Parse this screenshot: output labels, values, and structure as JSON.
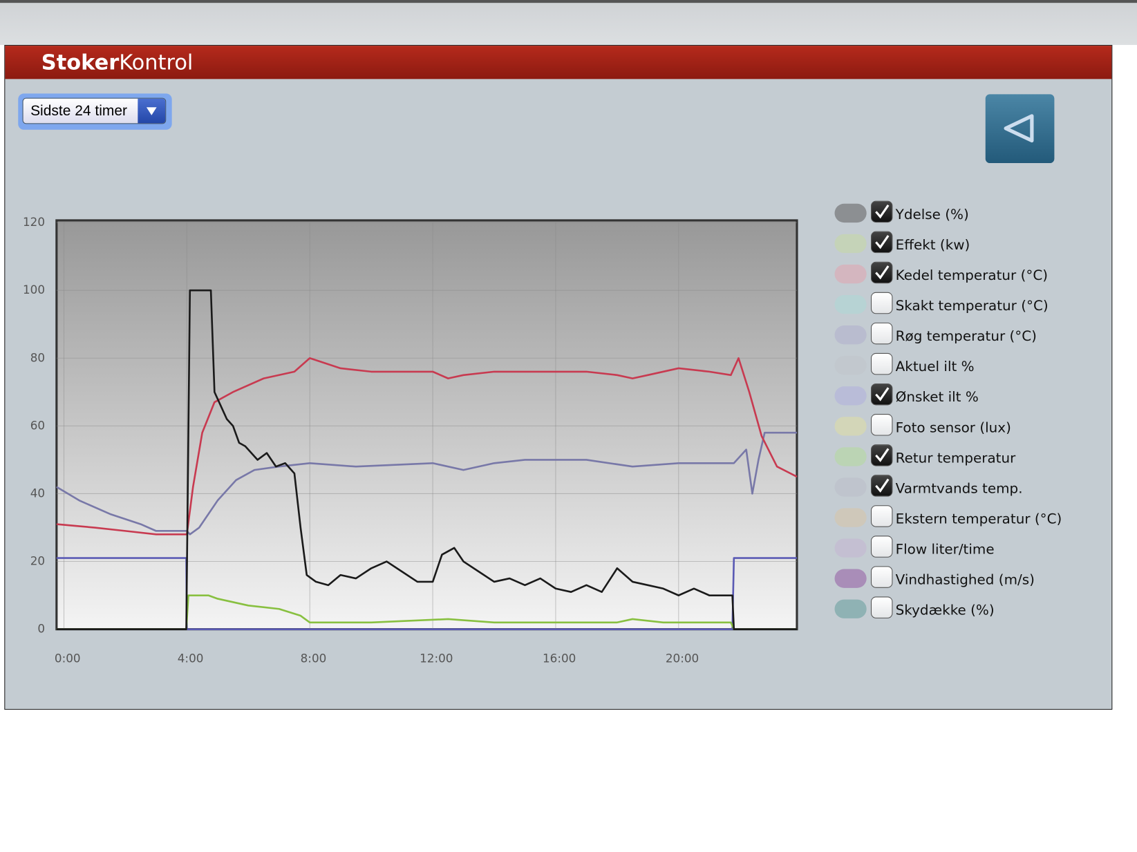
{
  "header": {
    "brand": [
      "Stoker",
      "Kontrol"
    ]
  },
  "period_select": {
    "selected": "Sidste 24 timer"
  },
  "legend": [
    {
      "label": "Ydelse (%)",
      "color": "#8c8f92",
      "checked": true
    },
    {
      "label": "Effekt (kw)",
      "color": "#c5d3b8",
      "checked": true
    },
    {
      "label": "Kedel temperatur (°C)",
      "color": "#d4b6bf",
      "checked": true
    },
    {
      "label": "Skakt temperatur (°C)",
      "color": "#b7d3d4",
      "checked": false
    },
    {
      "label": "Røg temperatur (°C)",
      "color": "#b9bccf",
      "checked": false
    },
    {
      "label": "Aktuel ilt %",
      "color": "#c2c8ce",
      "checked": false
    },
    {
      "label": "Ønsket ilt %",
      "color": "#b9bcd8",
      "checked": true
    },
    {
      "label": "Foto sensor (lux)",
      "color": "#d3d6b8",
      "checked": false
    },
    {
      "label": "Retur temperatur",
      "color": "#bbd4b4",
      "checked": true
    },
    {
      "label": "Varmtvands temp.",
      "color": "#bfc4cd",
      "checked": true
    },
    {
      "label": "Ekstern temperatur (°C)",
      "color": "#cfc8ba",
      "checked": false
    },
    {
      "label": "Flow liter/time",
      "color": "#c4bfd2",
      "checked": false
    },
    {
      "label": "Vindhastighed (m/s)",
      "color": "#a98db8",
      "checked": false
    },
    {
      "label": "Skydække (%)",
      "color": "#8fb2b4",
      "checked": false
    }
  ],
  "chart_data": {
    "type": "line",
    "xlim": [
      -0.24,
      23.85
    ],
    "ylim": [
      0,
      120
    ],
    "yticks": [
      0,
      20,
      40,
      60,
      80,
      100,
      120
    ],
    "grid": true,
    "xticks": [
      {
        "value": 0,
        "label": "0:00"
      },
      {
        "value": 4,
        "label": "4:00"
      },
      {
        "value": 8,
        "label": "8:00"
      },
      {
        "value": 12,
        "label": "12:00"
      },
      {
        "value": 16,
        "label": "16:00"
      },
      {
        "value": 20,
        "label": "20:00"
      }
    ],
    "series": [
      {
        "color": "#5a5ab4",
        "x": [
          -0.24,
          3.98,
          4.0,
          21.75,
          21.8,
          23.85
        ],
        "values": [
          21,
          21,
          0,
          0,
          21,
          21
        ]
      },
      {
        "color": "#7878a8",
        "x": [
          -0.24,
          0.5,
          1.5,
          2.5,
          3,
          4,
          4.1,
          4.4,
          5,
          5.6,
          6.2,
          7,
          8,
          9.5,
          12,
          13,
          14,
          15,
          17,
          18.5,
          20,
          21.8,
          22.2,
          22.4,
          22.6,
          22.8,
          23.85
        ],
        "values": [
          42,
          38,
          34,
          31,
          29,
          29,
          28,
          30,
          38,
          44,
          47,
          48,
          49,
          48,
          49,
          47,
          49,
          50,
          50,
          48,
          49,
          49,
          53,
          40,
          50,
          58,
          58
        ]
      },
      {
        "color": "#88c040",
        "x": [
          -0.24,
          3.98,
          4.05,
          4.7,
          5,
          6,
          7,
          7.7,
          8,
          10,
          12.5,
          14,
          18,
          18.5,
          19.5,
          21.7,
          21.8,
          23.85
        ],
        "values": [
          0,
          0,
          10,
          10,
          9,
          7,
          6,
          4,
          2,
          2,
          3,
          2,
          2,
          3,
          2,
          2,
          0,
          0
        ]
      },
      {
        "color": "#c83a50",
        "x": [
          -0.24,
          1,
          2,
          3,
          4,
          4.2,
          4.5,
          4.9,
          5.5,
          6.5,
          7.5,
          8,
          9,
          10,
          11,
          12,
          12.5,
          13,
          14,
          15,
          16,
          17,
          18,
          18.5,
          19,
          20,
          21,
          21.7,
          21.95,
          22.3,
          22.7,
          23.2,
          23.85
        ],
        "values": [
          31,
          30,
          29,
          28,
          28,
          42,
          58,
          67,
          70,
          74,
          76,
          80,
          77,
          76,
          76,
          76,
          74,
          75,
          76,
          76,
          76,
          76,
          75,
          74,
          75,
          77,
          76,
          75,
          80,
          70,
          57,
          48,
          45
        ]
      },
      {
        "color": "#1a1a1a",
        "x": [
          -0.24,
          3.98,
          4.1,
          4.78,
          4.9,
          5.1,
          5.3,
          5.5,
          5.7,
          5.9,
          6.1,
          6.3,
          6.6,
          6.9,
          7.2,
          7.5,
          7.7,
          7.9,
          8.2,
          8.6,
          9,
          9.5,
          10,
          10.5,
          11,
          11.5,
          12,
          12.3,
          12.7,
          13,
          13.5,
          14,
          14.5,
          15,
          15.5,
          16,
          16.5,
          17,
          17.5,
          18,
          18.5,
          19,
          19.5,
          20,
          20.5,
          21,
          21.5,
          21.75,
          21.8,
          23.85
        ],
        "values": [
          0,
          0,
          100,
          100,
          70,
          66,
          62,
          60,
          55,
          54,
          52,
          50,
          52,
          48,
          49,
          46,
          30,
          16,
          14,
          13,
          16,
          15,
          18,
          20,
          17,
          14,
          14,
          22,
          24,
          20,
          17,
          14,
          15,
          13,
          15,
          12,
          11,
          13,
          11,
          18,
          14,
          13,
          12,
          10,
          12,
          10,
          10,
          10,
          0,
          0
        ]
      }
    ]
  }
}
